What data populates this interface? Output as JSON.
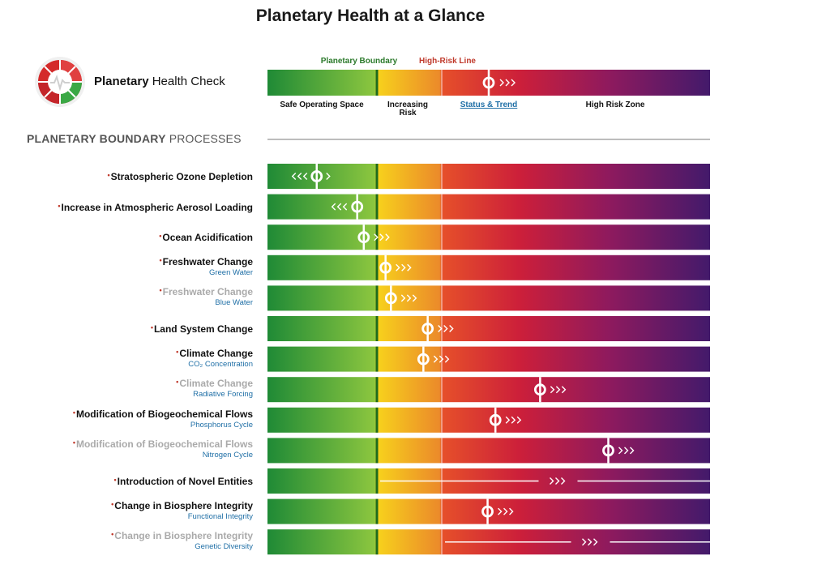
{
  "title": "Planetary Health at a Glance",
  "brand": {
    "bold": "Planetary",
    "rest": " Health Check"
  },
  "legend": {
    "planetary_boundary": "Planetary Boundary",
    "high_risk_line": "High-Risk Line",
    "safe_zone": "Safe Operating Space",
    "increasing_risk": [
      "Increasing",
      "Risk"
    ],
    "status_trend": "Status & Trend",
    "high_risk_zone": "High Risk Zone"
  },
  "section": {
    "bold": "PLANETARY BOUNDARY",
    "rest": " PROCESSES"
  },
  "colors": {
    "green": "#2e9e3c",
    "yellow": "#f5c518",
    "orange": "#e8742a",
    "red": "#d42a2a",
    "purple": "#7a1a6e",
    "deep_purple": "#431a6b",
    "boundary_line": "#1e6b1e",
    "high_risk": "#c0392b",
    "link_blue": "#1f6fa6"
  },
  "chart_data": {
    "type": "bar",
    "scale": "0 = safe start, 1 = planetary boundary, 1.6 = high-risk line, 4 = scale end",
    "xlim": [
      0,
      4
    ],
    "boundary_value": 1,
    "high_risk_value": 1.6,
    "rows": [
      {
        "name": "Stratospheric Ozone Depletion",
        "sub": "",
        "value": 0.45,
        "trend": "stable",
        "muted": false
      },
      {
        "name": "Increase in Atmospheric Aerosol Loading",
        "sub": "",
        "value": 0.82,
        "trend": "improving",
        "muted": false
      },
      {
        "name": "Ocean Acidification",
        "sub": "",
        "value": 0.88,
        "trend": "worsening",
        "muted": false
      },
      {
        "name": "Freshwater Change",
        "sub": "Green Water",
        "value": 1.08,
        "trend": "worsening",
        "muted": false
      },
      {
        "name": "Freshwater Change",
        "sub": "Blue Water",
        "value": 1.13,
        "trend": "worsening",
        "muted": true
      },
      {
        "name": "Land System Change",
        "sub": "",
        "value": 1.47,
        "trend": "worsening",
        "muted": false
      },
      {
        "name": "Climate Change",
        "sub": "CO₂ Concentration",
        "value": 1.43,
        "trend": "worsening",
        "muted": false
      },
      {
        "name": "Climate Change",
        "sub": "Radiative Forcing",
        "value": 2.48,
        "trend": "worsening",
        "muted": true
      },
      {
        "name": "Modification of Biogeochemical Flows",
        "sub": "Phosphorus Cycle",
        "value": 2.08,
        "trend": "worsening",
        "muted": false
      },
      {
        "name": "Modification of Biogeochemical Flows",
        "sub": "Nitrogen Cycle",
        "value": 3.09,
        "trend": "worsening",
        "muted": true
      },
      {
        "name": "Introduction of Novel Entities",
        "sub": "",
        "value": null,
        "range_from": 1,
        "trend": "worsening",
        "muted": false
      },
      {
        "name": "Change in Biosphere Integrity",
        "sub": "Functional Integrity",
        "value": 2.01,
        "trend": "worsening",
        "muted": false
      },
      {
        "name": "Change in Biosphere Integrity",
        "sub": "Genetic Diversity",
        "value": null,
        "range_from": 1.6,
        "trend": "worsening",
        "muted": true
      }
    ]
  }
}
